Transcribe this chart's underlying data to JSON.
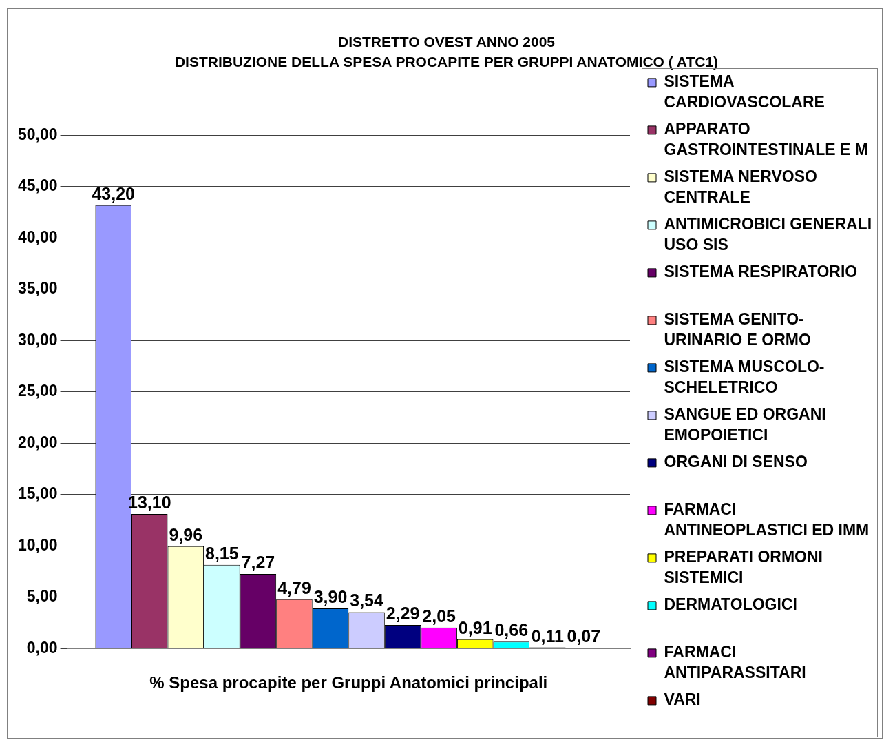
{
  "chart_data": {
    "type": "bar",
    "title": "DISTRETTO OVEST ANNO 2005",
    "subtitle": "DISTRIBUZIONE DELLA SPESA PROCAPITE PER GRUPPI ANATOMICO ( ATC1)",
    "categories": [
      "% Spesa procapite per Gruppi Anatomici principali"
    ],
    "series": [
      {
        "name": "SISTEMA CARDIOVASCOLARE",
        "color": "#9999ff",
        "values": [
          43.2
        ],
        "value_labels": [
          "43,20"
        ]
      },
      {
        "name": "APPARATO GASTROINTESTINALE E M",
        "color": "#993366",
        "values": [
          13.1
        ],
        "value_labels": [
          "13,10"
        ]
      },
      {
        "name": "SISTEMA NERVOSO CENTRALE",
        "color": "#ffffcc",
        "values": [
          9.96
        ],
        "value_labels": [
          "9,96"
        ]
      },
      {
        "name": "ANTIMICROBICI GENERALI USO SIS",
        "color": "#ccffff",
        "values": [
          8.15
        ],
        "value_labels": [
          "8,15"
        ]
      },
      {
        "name": "SISTEMA RESPIRATORIO",
        "color": "#660066",
        "values": [
          7.27
        ],
        "value_labels": [
          "7,27"
        ]
      },
      {
        "name": "SISTEMA GENITO-URINARIO E ORMO",
        "color": "#ff8080",
        "values": [
          4.79
        ],
        "value_labels": [
          "4,79"
        ]
      },
      {
        "name": "SISTEMA MUSCOLO-SCHELETRICO",
        "color": "#0066cc",
        "values": [
          3.9
        ],
        "value_labels": [
          "3,90"
        ]
      },
      {
        "name": "SANGUE ED ORGANI EMOPOIETICI",
        "color": "#ccccff",
        "values": [
          3.54
        ],
        "value_labels": [
          "3,54"
        ]
      },
      {
        "name": "ORGANI DI SENSO",
        "color": "#000080",
        "values": [
          2.29
        ],
        "value_labels": [
          "2,29"
        ]
      },
      {
        "name": "FARMACI ANTINEOPLASTICI ED IMM",
        "color": "#ff00ff",
        "values": [
          2.05
        ],
        "value_labels": [
          "2,05"
        ]
      },
      {
        "name": "PREPARATI ORMONI SISTEMICI",
        "color": "#ffff00",
        "values": [
          0.91
        ],
        "value_labels": [
          "0,91"
        ]
      },
      {
        "name": "DERMATOLOGICI",
        "color": "#00ffff",
        "values": [
          0.66
        ],
        "value_labels": [
          "0,66"
        ]
      },
      {
        "name": "FARMACI ANTIPARASSITARI",
        "color": "#800080",
        "values": [
          0.11
        ],
        "value_labels": [
          "0,11"
        ]
      },
      {
        "name": "VARI",
        "color": "#800000",
        "values": [
          0.07
        ],
        "value_labels": [
          "0,07"
        ]
      }
    ],
    "ylim": [
      0,
      50
    ],
    "yticks": [
      {
        "value": 0,
        "label": "0,00"
      },
      {
        "value": 5,
        "label": "5,00"
      },
      {
        "value": 10,
        "label": "10,00"
      },
      {
        "value": 15,
        "label": "15,00"
      },
      {
        "value": 20,
        "label": "20,00"
      },
      {
        "value": 25,
        "label": "25,00"
      },
      {
        "value": 30,
        "label": "30,00"
      },
      {
        "value": 35,
        "label": "35,00"
      },
      {
        "value": 40,
        "label": "40,00"
      },
      {
        "value": 45,
        "label": "45,00"
      },
      {
        "value": 50,
        "label": "50,00"
      }
    ],
    "grid": "y",
    "legend": "right"
  }
}
